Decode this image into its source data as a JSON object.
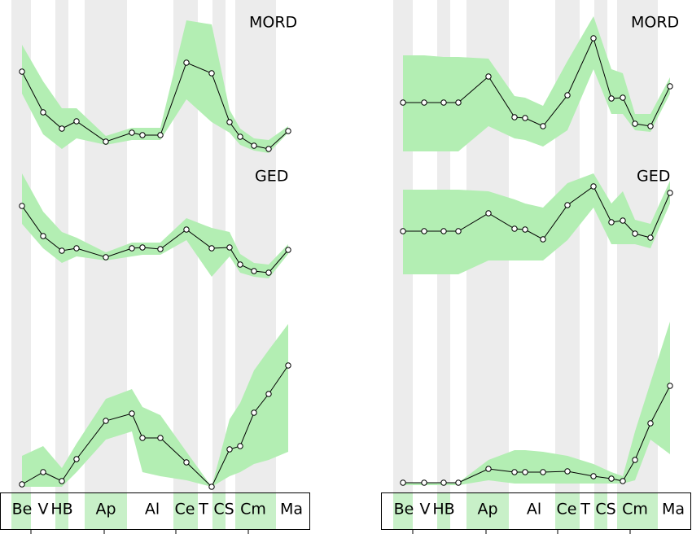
{
  "chart_data": [
    {
      "type": "line",
      "categories": [
        "Be",
        "V",
        "HB",
        "Ap",
        "Al",
        "Ce",
        "T",
        "CS",
        "Cm",
        "Ma"
      ],
      "x": [
        13,
        39,
        62,
        80,
        116,
        148,
        161,
        183,
        215,
        246,
        268,
        281,
        298,
        316,
        340
      ],
      "xlim": [
        0,
        360
      ],
      "ylim": [
        0,
        200
      ],
      "band_color": "#b3eeb3",
      "line_color": "#000000",
      "series": [
        {
          "name": "MORD",
          "values": [
            112,
            62,
            42,
            51,
            26,
            37,
            34,
            34,
            123,
            110,
            50,
            32,
            21,
            17,
            39
          ],
          "upper": [
            145,
            100,
            67,
            67,
            33,
            43,
            43,
            43,
            175,
            170,
            65,
            42,
            30,
            28,
            45
          ],
          "lower": [
            85,
            35,
            17,
            30,
            22,
            28,
            28,
            28,
            78,
            50,
            37,
            22,
            15,
            12,
            37
          ]
        },
        {
          "name": "GED",
          "values": [
            147,
            110,
            92,
            95,
            84,
            95,
            96,
            94,
            118,
            95,
            96,
            75,
            67,
            65,
            93
          ],
          "upper": [
            187,
            140,
            115,
            108,
            90,
            102,
            102,
            102,
            132,
            120,
            115,
            88,
            77,
            75,
            100
          ],
          "lower": [
            125,
            95,
            77,
            85,
            80,
            85,
            87,
            87,
            105,
            60,
            85,
            65,
            60,
            58,
            88
          ]
        },
        {
          "values": [
            5,
            20,
            9,
            36,
            83,
            92,
            62,
            62,
            32,
            2,
            48,
            52,
            93,
            116,
            151
          ],
          "upper": [
            40,
            52,
            25,
            55,
            110,
            122,
            100,
            90,
            45,
            2,
            85,
            105,
            145,
            170,
            202
          ],
          "lower": [
            2,
            2,
            2,
            20,
            60,
            70,
            20,
            15,
            10,
            2,
            15,
            20,
            30,
            35,
            45
          ]
        }
      ]
    },
    {
      "type": "line",
      "categories": [
        "Be",
        "V",
        "HB",
        "Ap",
        "Al",
        "Ce",
        "T",
        "CS",
        "Cm",
        "Ma"
      ],
      "x": [
        12,
        38,
        62,
        80,
        117,
        149,
        162,
        184,
        214,
        246,
        268,
        282,
        297,
        316,
        340
      ],
      "xlim": [
        0,
        360
      ],
      "ylim": [
        0,
        200
      ],
      "band_color": "#b3eeb3",
      "line_color": "#000000",
      "series": [
        {
          "name": "MORD",
          "values": [
            74,
            74,
            74,
            74,
            106,
            56,
            55,
            45,
            83,
            153,
            79,
            80,
            48,
            45,
            94
          ],
          "upper": [
            132,
            132,
            130,
            130,
            128,
            82,
            80,
            70,
            125,
            180,
            115,
            110,
            60,
            60,
            105
          ],
          "lower": [
            14,
            14,
            14,
            14,
            45,
            30,
            28,
            20,
            40,
            115,
            60,
            60,
            40,
            38,
            85
          ]
        },
        {
          "name": "GED",
          "values": [
            116,
            116,
            116,
            116,
            138,
            119,
            118,
            106,
            148,
            171,
            127,
            129,
            113,
            108,
            163
          ],
          "upper": [
            167,
            167,
            167,
            167,
            165,
            155,
            150,
            145,
            175,
            187,
            150,
            165,
            130,
            125,
            178
          ],
          "lower": [
            63,
            63,
            63,
            63,
            80,
            80,
            80,
            80,
            105,
            145,
            100,
            100,
            100,
            95,
            150
          ]
        },
        {
          "values": [
            7,
            7,
            7,
            7,
            24,
            20,
            20,
            20,
            21,
            15,
            12,
            9,
            35,
            80,
            126
          ],
          "upper": [
            7,
            7,
            7,
            7,
            35,
            47,
            47,
            45,
            40,
            30,
            20,
            15,
            70,
            130,
            205
          ],
          "lower": [
            4,
            4,
            4,
            4,
            10,
            6,
            6,
            6,
            6,
            6,
            6,
            6,
            10,
            60,
            42
          ]
        }
      ]
    }
  ]
}
